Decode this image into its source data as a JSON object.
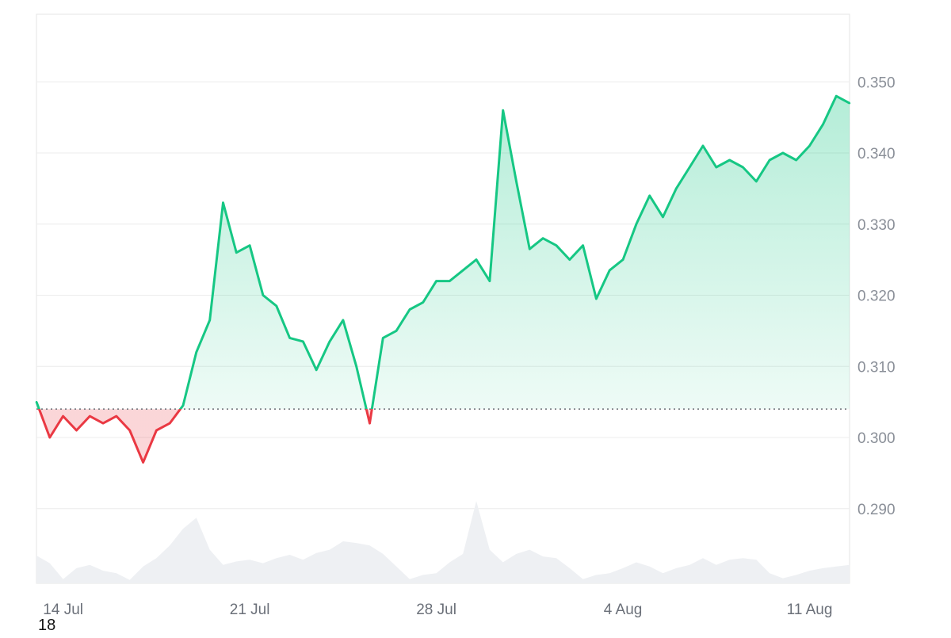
{
  "chart_data": {
    "type": "line",
    "x_tick_labels": [
      "14 Jul",
      "21 Jul",
      "28 Jul",
      "4 Aug",
      "11 Aug"
    ],
    "y_tick_labels": [
      "0.290",
      "0.300",
      "0.310",
      "0.320",
      "0.330",
      "0.340",
      "0.350"
    ],
    "ylim": [
      0.2795,
      0.3595
    ],
    "xlim": [
      "2024-07-13T00:00",
      "2024-08-12T12:00"
    ],
    "baseline": 0.304,
    "grid": true,
    "colors": {
      "up": "#16c784",
      "down": "#ea3943",
      "volume": "#eef0f3",
      "grid": "#ececec",
      "baseline": "#6b6f76"
    },
    "series": [
      {
        "x": [
          "2024-07-13T00:00",
          "2024-07-13T12:00",
          "2024-07-14T00:00",
          "2024-07-14T12:00",
          "2024-07-15T00:00",
          "2024-07-15T12:00",
          "2024-07-16T00:00",
          "2024-07-16T12:00",
          "2024-07-17T00:00",
          "2024-07-17T12:00",
          "2024-07-18T00:00",
          "2024-07-18T12:00",
          "2024-07-19T00:00",
          "2024-07-19T12:00",
          "2024-07-20T00:00",
          "2024-07-20T12:00",
          "2024-07-21T00:00",
          "2024-07-21T12:00",
          "2024-07-22T00:00",
          "2024-07-22T12:00",
          "2024-07-23T00:00",
          "2024-07-23T12:00",
          "2024-07-24T00:00",
          "2024-07-24T12:00",
          "2024-07-25T00:00",
          "2024-07-25T12:00",
          "2024-07-26T00:00",
          "2024-07-26T12:00",
          "2024-07-27T00:00",
          "2024-07-27T12:00",
          "2024-07-28T00:00",
          "2024-07-28T12:00",
          "2024-07-29T00:00",
          "2024-07-29T12:00",
          "2024-07-30T00:00",
          "2024-07-30T12:00",
          "2024-07-31T00:00",
          "2024-07-31T12:00",
          "2024-08-01T00:00",
          "2024-08-01T12:00",
          "2024-08-02T00:00",
          "2024-08-02T12:00",
          "2024-08-03T00:00",
          "2024-08-03T12:00",
          "2024-08-04T00:00",
          "2024-08-04T12:00",
          "2024-08-05T00:00",
          "2024-08-05T12:00",
          "2024-08-06T00:00",
          "2024-08-06T12:00",
          "2024-08-07T00:00",
          "2024-08-07T12:00",
          "2024-08-08T00:00",
          "2024-08-08T12:00",
          "2024-08-09T00:00",
          "2024-08-09T12:00",
          "2024-08-10T00:00",
          "2024-08-10T12:00",
          "2024-08-11T00:00",
          "2024-08-11T12:00",
          "2024-08-12T00:00",
          "2024-08-12T12:00"
        ],
        "values": [
          0.305,
          0.3,
          0.303,
          0.301,
          0.303,
          0.302,
          0.303,
          0.301,
          0.2965,
          0.301,
          0.302,
          0.3045,
          0.312,
          0.3165,
          0.333,
          0.326,
          0.327,
          0.32,
          0.3185,
          0.314,
          0.3135,
          0.3095,
          0.3135,
          0.3165,
          0.31,
          0.302,
          0.314,
          0.315,
          0.318,
          0.319,
          0.322,
          0.322,
          0.3235,
          0.325,
          0.322,
          0.346,
          0.336,
          0.3265,
          0.328,
          0.327,
          0.325,
          0.327,
          0.3195,
          0.3235,
          0.325,
          0.33,
          0.334,
          0.331,
          0.335,
          0.338,
          0.341,
          0.338,
          0.339,
          0.338,
          0.336,
          0.339,
          0.34,
          0.339,
          0.341,
          0.344,
          0.348,
          0.347
        ]
      }
    ],
    "volume": [
      0.33,
      0.24,
      0.05,
      0.18,
      0.22,
      0.15,
      0.12,
      0.04,
      0.2,
      0.3,
      0.45,
      0.65,
      0.78,
      0.4,
      0.22,
      0.26,
      0.28,
      0.24,
      0.3,
      0.34,
      0.28,
      0.36,
      0.4,
      0.5,
      0.48,
      0.45,
      0.35,
      0.2,
      0.05,
      0.1,
      0.12,
      0.25,
      0.35,
      0.98,
      0.4,
      0.25,
      0.35,
      0.4,
      0.32,
      0.3,
      0.18,
      0.05,
      0.1,
      0.12,
      0.18,
      0.25,
      0.2,
      0.12,
      0.18,
      0.22,
      0.3,
      0.22,
      0.28,
      0.3,
      0.28,
      0.12,
      0.06,
      0.1,
      0.15,
      0.18,
      0.2,
      0.22
    ],
    "corner_label": "18"
  }
}
